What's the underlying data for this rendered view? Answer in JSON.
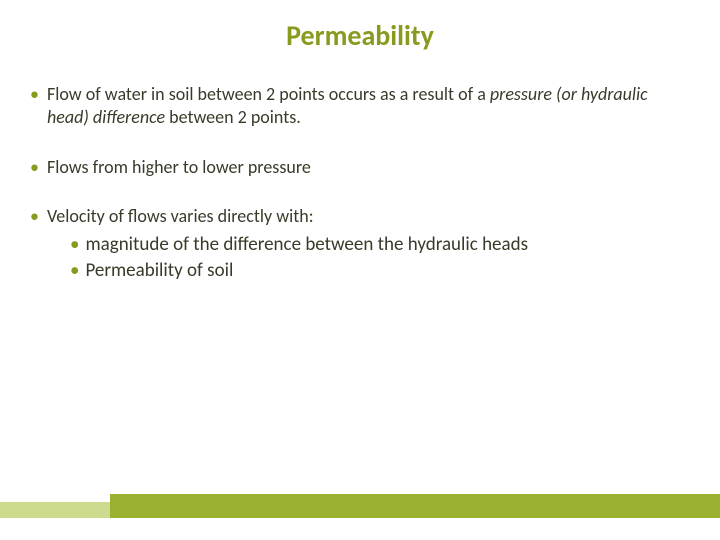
{
  "title": "Permeability",
  "bullets": [
    {
      "pre": "Flow of water in soil between 2 points occurs as a result of a ",
      "italic": "pressure (or hydraulic head) difference",
      "post": " between 2 points."
    },
    {
      "text": "Flows from higher to lower pressure"
    },
    {
      "text": "Velocity of flows varies directly with:"
    }
  ],
  "sub_bullets": [
    "magnitude of the difference between the hydraulic heads",
    "Permeability of soil"
  ],
  "colors": {
    "accent": "#8a9a1f",
    "text": "#3a3a2a",
    "bar_light": "#cddb8f",
    "bar_dark": "#9ab02f",
    "background": "#ffffff"
  },
  "typography": {
    "title_fontsize": 28,
    "bullet_fontsize": 18,
    "sub_bullet_fontsize": 19,
    "font_family": "Calibri"
  }
}
